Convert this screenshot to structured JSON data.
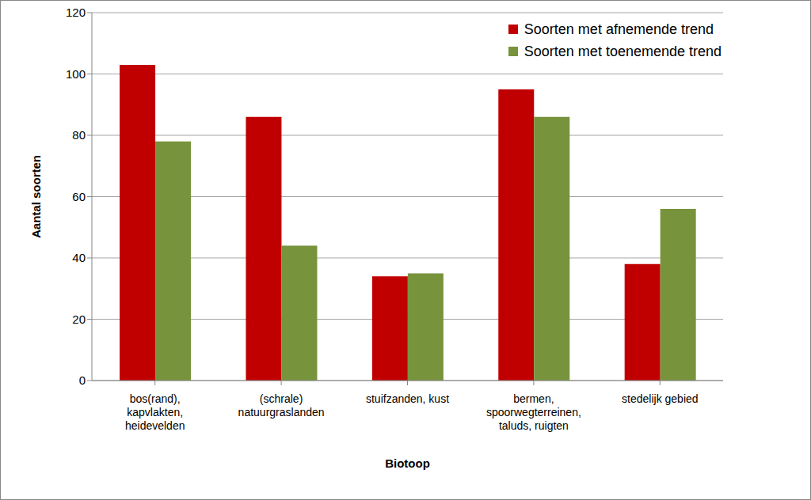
{
  "chart_data": {
    "type": "bar",
    "x_label": "Biotoop",
    "y_label": "Aantal soorten",
    "categories": [
      "bos(rand), kapvlakten, heidevelden",
      "(schrale) natuurgraslanden",
      "stuifzanden, kust",
      "bermen, spoorwegterreinen, taluds, ruigten",
      "stedelijk gebied"
    ],
    "series": [
      {
        "name": "Soorten met afnemende trend",
        "color": "#c00000",
        "values": [
          103,
          86,
          34,
          95,
          38
        ]
      },
      {
        "name": "Soorten met toenemende trend",
        "color": "#77933c",
        "values": [
          78,
          44,
          35,
          86,
          56
        ]
      }
    ],
    "ylim": [
      0,
      120
    ],
    "yticks": [
      0,
      20,
      40,
      60,
      80,
      100,
      120
    ],
    "grid": true,
    "legend": "upper right"
  }
}
